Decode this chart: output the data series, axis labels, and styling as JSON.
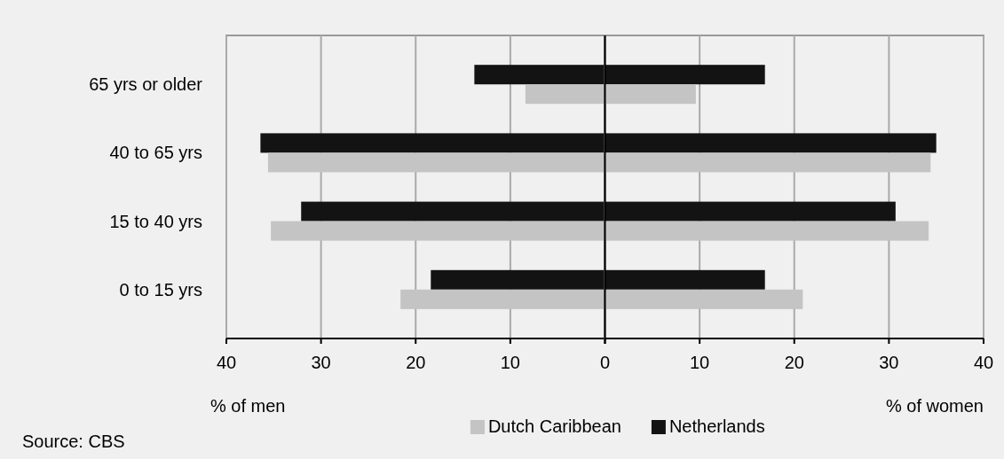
{
  "chart_data": [
    {
      "type": "bar",
      "orientation": "horizontal",
      "xlabel": "% of men",
      "categories": [
        "65 yrs or older",
        "40 to 65 yrs",
        "15 to 40 yrs",
        "0 to 15 yrs"
      ],
      "series": [
        {
          "color": "#131313",
          "values": [
            13.8,
            36.4,
            32.1,
            18.4
          ]
        },
        {
          "color": "#c4c4c4",
          "values": [
            8.4,
            35.6,
            35.3,
            21.6
          ]
        }
      ],
      "xlim": [
        40,
        0
      ],
      "xticks": [
        40,
        30,
        20,
        10,
        {
          "value": 0,
          "label": null
        }
      ],
      "grid": "x",
      "annotations": [
        "Source: CBS"
      ]
    },
    {
      "type": "bar",
      "orientation": "horizontal",
      "xlabel": "% of women",
      "categories": [
        null,
        null,
        null,
        null
      ],
      "series": [
        {
          "name": "Netherlands",
          "color": "#131313",
          "values": [
            16.9,
            35.0,
            30.7,
            16.9
          ]
        },
        {
          "name": "Dutch Caribbean",
          "color": "#c4c4c4",
          "values": [
            9.6,
            34.4,
            34.2,
            20.9
          ]
        }
      ],
      "xlim": [
        0,
        40
      ],
      "xticks": [
        0,
        10,
        20,
        30,
        40
      ],
      "grid": "x",
      "legend": "bottom"
    }
  ]
}
